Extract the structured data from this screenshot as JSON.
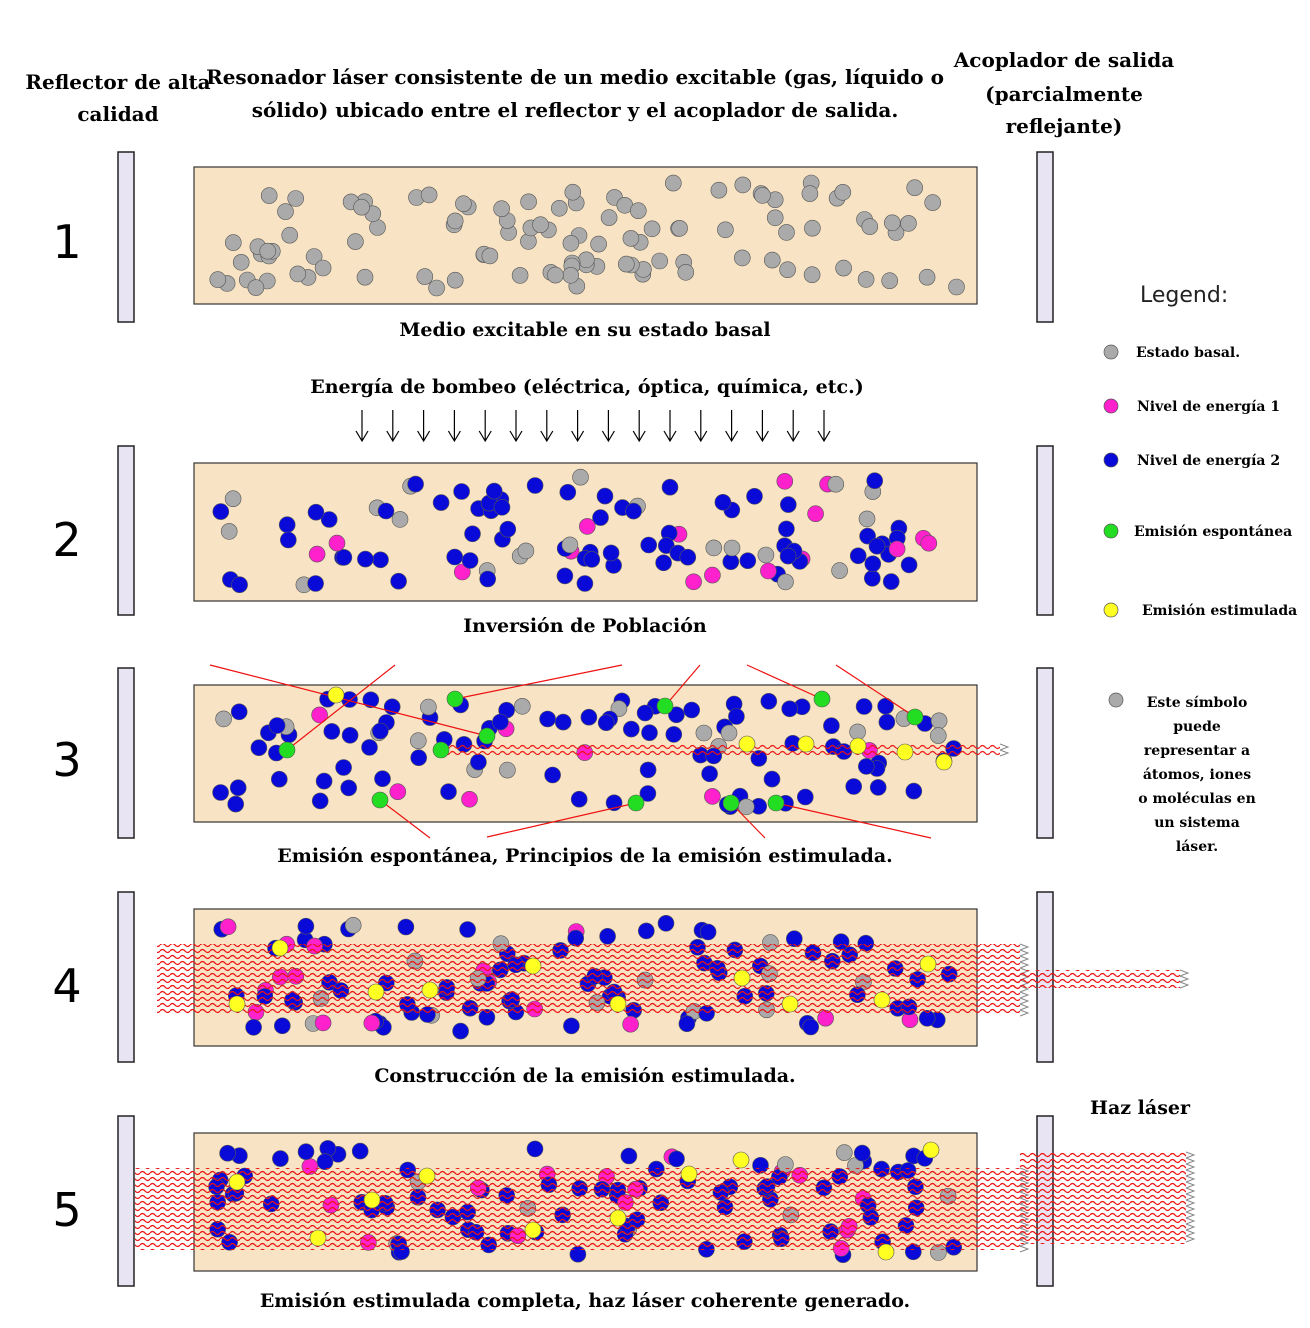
{
  "header": {
    "left_reflector": [
      "Reflector de alta",
      "calidad"
    ],
    "resonator": [
      "Resonador láser consistente de un medio excitable (gas, líquido o",
      "sólido) ubicado entre el reflector y el acoplador de salida."
    ],
    "output_coupler": [
      "Acoplador de salida",
      "(parcialmente",
      "reflejante)"
    ]
  },
  "pump_label": "Energía de bombeo (eléctrica, óptica, química, etc.)",
  "stages": [
    {
      "number": "1",
      "caption": "Medio excitable en su estado basal"
    },
    {
      "number": "2",
      "caption": "Inversión de Población"
    },
    {
      "number": "3",
      "caption": "Emisión espontánea, Principios de la emisión estimulada."
    },
    {
      "number": "4",
      "caption": "Construcción de la emisión estimulada."
    },
    {
      "number": "5",
      "caption": "Emisión estimulada completa, haz láser coherente generado."
    }
  ],
  "beam_label": "Haz láser",
  "legend": {
    "title": "Legend:",
    "items": [
      {
        "label": "Estado basal.",
        "color": "#aaaaaa"
      },
      {
        "label": "Nivel de energía 1",
        "color": "#ff22cc"
      },
      {
        "label": "Nivel de energía 2",
        "color": "#0a0ad8"
      },
      {
        "label": "Emisión espontánea",
        "color": "#22dd22"
      },
      {
        "label": "Emisión estimulada",
        "color": "#ffff22"
      }
    ],
    "note": [
      "Este símbolo",
      "puede",
      "representar a",
      "átomos, iones",
      "o moléculas en",
      "un sistema",
      "láser."
    ]
  },
  "colors": {
    "medium": "#f8e4c4",
    "mirror": "#e8e4f4",
    "beam": "#ee1111",
    "spontaneous_ray": "#ee1111"
  }
}
